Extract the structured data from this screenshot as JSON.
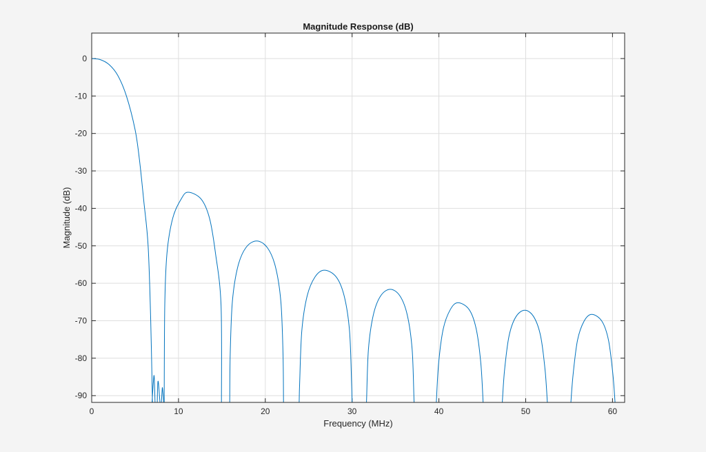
{
  "chart_data": {
    "type": "line",
    "title": "Magnitude Response (dB)",
    "xlabel": "Frequency (MHz)",
    "ylabel": "Magnitude (dB)",
    "xlim": [
      0,
      61.4
    ],
    "ylim": [
      -91.8,
      6.8
    ],
    "xticks": [
      0,
      10,
      20,
      30,
      40,
      50,
      60
    ],
    "xtick_labels": [
      "0",
      "10",
      "20",
      "30",
      "40",
      "50",
      "60"
    ],
    "yticks": [
      0,
      -10,
      -20,
      -30,
      -40,
      -50,
      -60,
      -70,
      -80,
      -90
    ],
    "ytick_labels": [
      "0",
      "-10",
      "-20",
      "-30",
      "-40",
      "-50",
      "-60",
      "-70",
      "-80",
      "-90"
    ],
    "grid": true,
    "line_color": "#0072bd",
    "series": [
      {
        "segments": [
          {
            "x": [
              0,
              1,
              2,
              3,
              4,
              5,
              5.5,
              6,
              6.5,
              6.8,
              7.0
            ],
            "y": [
              0,
              -0.3,
              -1.6,
              -4.5,
              -10,
              -19,
              -27,
              -38,
              -50,
              -70,
              -92
            ]
          },
          {
            "x": [
              6.95,
              7.1,
              7.2,
              7.3
            ],
            "y": [
              -92,
              -86.5,
              -84.9,
              -92
            ]
          },
          {
            "x": [
              7.55,
              7.6,
              7.68,
              7.87
            ],
            "y": [
              -92,
              -87.5,
              -86.4,
              -92
            ]
          },
          {
            "x": [
              8.03,
              8.1,
              8.16,
              8.3
            ],
            "y": [
              -92,
              -89,
              -88,
              -92
            ]
          },
          {
            "x": [
              8.35,
              8.42,
              8.68,
              9.34,
              10.31,
              11.1,
              12.6,
              13.57,
              14.25,
              14.9,
              14.95
            ],
            "y": [
              -92,
              -65.7,
              -51.8,
              -42.6,
              -37.5,
              -35.7,
              -37.5,
              -42.6,
              -51.8,
              -65.7,
              -92
            ]
          },
          {
            "x": [
              15.9,
              15.96,
              16.21,
              16.83,
              17.76,
              19.0,
              20.24,
              21.17,
              21.79,
              22.04,
              22.1
            ],
            "y": [
              -92,
              -78.7,
              -64.8,
              -55.6,
              -50.5,
              -48.7,
              -50.5,
              -55.6,
              -64.8,
              -78.7,
              -92
            ]
          },
          {
            "x": [
              23.9,
              23.96,
              24.21,
              24.82,
              25.73,
              26.8,
              28.17,
              29.09,
              29.7,
              29.94,
              30.0
            ],
            "y": [
              -92,
              -86.5,
              -72.6,
              -63.4,
              -58.3,
              -56.5,
              -58.3,
              -63.4,
              -72.6,
              -86.5,
              -92
            ]
          },
          {
            "x": [
              31.6,
              31.66,
              31.88,
              32.44,
              33.28,
              34.4,
              35.52,
              36.36,
              36.92,
              37.14,
              37.2
            ],
            "y": [
              -92,
              -91.6,
              -77.7,
              -68.5,
              -63.4,
              -61.6,
              -63.4,
              -68.5,
              -77.7,
              -91.6,
              -92
            ]
          },
          {
            "x": [
              39.7,
              39.97,
              40.51,
              41.32,
              42.2,
              43.48,
              44.29,
              44.83,
              45.1
            ],
            "y": [
              -92,
              -81.3,
              -72.1,
              -67.0,
              -65.2,
              -67.0,
              -72.1,
              -81.3,
              -92
            ]
          },
          {
            "x": [
              47.3,
              47.56,
              48.08,
              48.86,
              49.9,
              50.94,
              51.72,
              52.24,
              52.5
            ],
            "y": [
              -92,
              -83.3,
              -74.1,
              -69.0,
              -67.2,
              -69.0,
              -74.1,
              -83.3,
              -92
            ]
          },
          {
            "x": [
              55.2,
              55.46,
              55.97,
              56.73,
              57.6,
              58.77,
              59.54,
              60.05,
              60.3
            ],
            "y": [
              -92,
              -84.4,
              -75.2,
              -70.1,
              -68.3,
              -70.1,
              -75.2,
              -84.4,
              -92
            ]
          }
        ]
      }
    ]
  }
}
